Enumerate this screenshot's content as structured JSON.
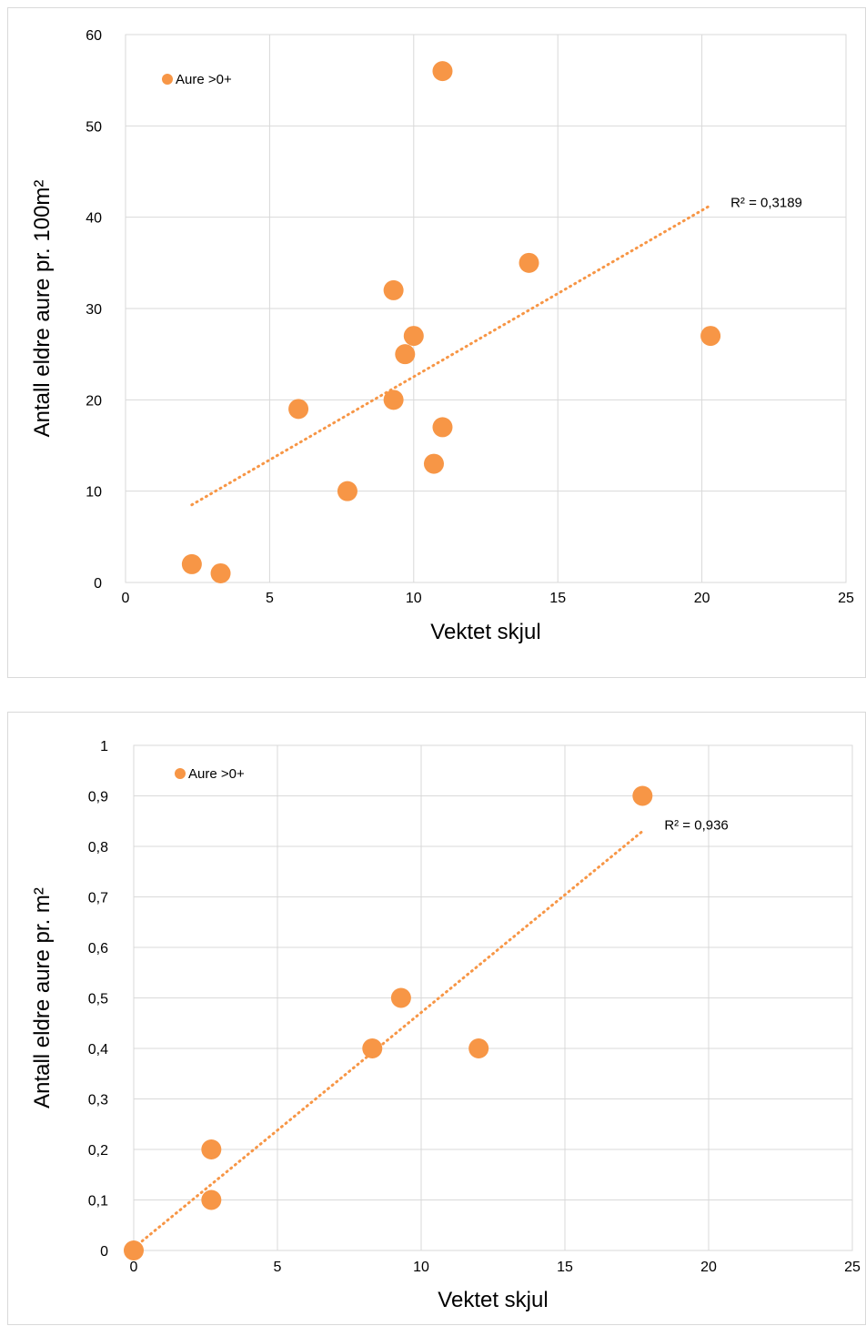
{
  "chart_data": [
    {
      "type": "scatter",
      "xlabel": "Vektet skjul",
      "ylabel": "Antall eldre aure pr. 100m²",
      "xlim": [
        0,
        25
      ],
      "ylim": [
        0,
        60
      ],
      "x_ticks": [
        "0",
        "5",
        "10",
        "15",
        "20",
        "25"
      ],
      "y_ticks": [
        "0",
        "10",
        "20",
        "30",
        "40",
        "50",
        "60"
      ],
      "grid": true,
      "legend_position": "top-left",
      "series": [
        {
          "name": "Aure >0+",
          "color": "#f79646",
          "points": [
            {
              "x": 2.3,
              "y": 2
            },
            {
              "x": 3.3,
              "y": 1
            },
            {
              "x": 6.0,
              "y": 19
            },
            {
              "x": 7.7,
              "y": 10
            },
            {
              "x": 9.3,
              "y": 32
            },
            {
              "x": 9.3,
              "y": 20
            },
            {
              "x": 9.7,
              "y": 25
            },
            {
              "x": 10.0,
              "y": 27
            },
            {
              "x": 10.7,
              "y": 13
            },
            {
              "x": 11.0,
              "y": 56
            },
            {
              "x": 11.0,
              "y": 17
            },
            {
              "x": 14.0,
              "y": 35
            },
            {
              "x": 20.3,
              "y": 27
            }
          ]
        }
      ],
      "trendline": {
        "type": "linear",
        "start": [
          2.3,
          8.5
        ],
        "end": [
          20.3,
          41.3
        ],
        "label": "R² = 0,3189"
      }
    },
    {
      "type": "scatter",
      "xlabel": "Vektet skjul",
      "ylabel": "Antall eldre aure pr. m²",
      "xlim": [
        0,
        25
      ],
      "ylim": [
        0,
        1
      ],
      "x_ticks": [
        "0",
        "5",
        "10",
        "15",
        "20",
        "25"
      ],
      "y_ticks": [
        "0",
        "0,1",
        "0,2",
        "0,3",
        "0,4",
        "0,5",
        "0,6",
        "0,7",
        "0,8",
        "0,9",
        "1"
      ],
      "grid": true,
      "legend_position": "top-left",
      "series": [
        {
          "name": "Aure >0+",
          "color": "#f79646",
          "points": [
            {
              "x": 0,
              "y": 0
            },
            {
              "x": 2.7,
              "y": 0.1
            },
            {
              "x": 2.7,
              "y": 0.2
            },
            {
              "x": 8.3,
              "y": 0.4
            },
            {
              "x": 9.3,
              "y": 0.5
            },
            {
              "x": 12.0,
              "y": 0.4
            },
            {
              "x": 17.7,
              "y": 0.9
            }
          ]
        }
      ],
      "trendline": {
        "type": "linear",
        "start": [
          0,
          0.005
        ],
        "end": [
          17.7,
          0.83
        ],
        "label": "R² = 0,936"
      }
    }
  ]
}
